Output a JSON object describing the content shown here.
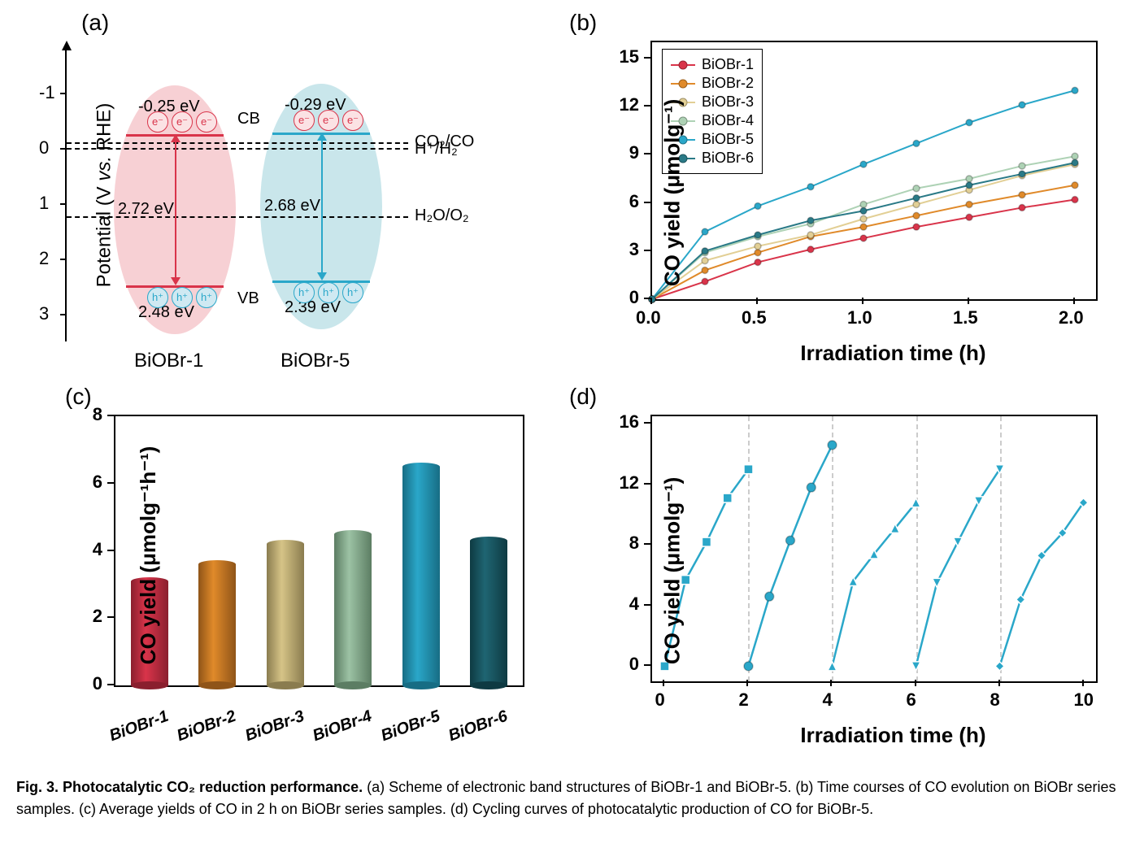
{
  "caption": {
    "fig_label": "Fig. 3.",
    "title_bold": "Photocatalytic CO₂ reduction performance.",
    "rest": " (a) Scheme of electronic band structures of BiOBr-1 and BiOBr-5. (b) Time courses of CO evolution on BiOBr series samples. (c) Average yields of CO in 2 h on BiOBr series samples. (d) Cycling curves of photocatalytic production of CO for BiOBr-5."
  },
  "panel_labels": {
    "a": "(a)",
    "b": "(b)",
    "c": "(c)",
    "d": "(d)"
  },
  "panel_a": {
    "ylabel": "Potential (V vs. RHE)",
    "italic_vs": true,
    "yticks": [
      -1,
      0,
      1,
      2,
      3
    ],
    "y_range": [
      -1.8,
      3.5
    ],
    "reference_lines": [
      {
        "label": "CO₂/CO",
        "y": -0.11
      },
      {
        "label": "H⁺/H₂",
        "y": 0.0
      },
      {
        "label": "H₂O/O₂",
        "y": 1.23
      }
    ],
    "annot": {
      "CB": "CB",
      "VB": "VB"
    },
    "materials": [
      {
        "name": "BiOBr-1",
        "ellipse_color": "#f7d0d4",
        "band_color": "#d9344a",
        "cb": -0.25,
        "vb": 2.48,
        "gap": 2.72,
        "cb_txt": "-0.25 eV",
        "vb_txt": "2.48 eV",
        "gap_txt": "2.72 eV",
        "electron_bg": "#fbe2e4",
        "electron_border": "#d9344a",
        "electron_text_color": "#d9344a",
        "hole_bg": "#cfe9f2",
        "hole_border": "#2aa7c9",
        "hole_text_color": "#2aa7c9"
      },
      {
        "name": "BiOBr-5",
        "ellipse_color": "#c9e6eb",
        "band_color": "#2aa7c9",
        "cb": -0.29,
        "vb": 2.39,
        "gap": 2.68,
        "cb_txt": "-0.29 eV",
        "vb_txt": "2.39 eV",
        "gap_txt": "2.68 eV",
        "electron_bg": "#fbe2e4",
        "electron_border": "#d9344a",
        "electron_text_color": "#d9344a",
        "hole_bg": "#cfe9f2",
        "hole_border": "#2aa7c9",
        "hole_text_color": "#2aa7c9"
      }
    ]
  },
  "panel_b": {
    "type": "line",
    "xlabel": "Irradiation time (h)",
    "ylabel": "CO yield  (μmolg⁻¹)",
    "xlim": [
      0,
      2.1
    ],
    "ylim": [
      0,
      16
    ],
    "xticks": [
      0.0,
      0.5,
      1.0,
      1.5,
      2.0
    ],
    "yticks": [
      0,
      3,
      6,
      9,
      12,
      15
    ],
    "x": [
      0,
      0.25,
      0.5,
      0.75,
      1.0,
      1.25,
      1.5,
      1.75,
      2.0
    ],
    "series": [
      {
        "name": "BiOBr-1",
        "color": "#d9344a",
        "y": [
          0,
          1.1,
          2.3,
          3.1,
          3.8,
          4.5,
          5.1,
          5.7,
          6.2
        ]
      },
      {
        "name": "BiOBr-2",
        "color": "#e08a2a",
        "y": [
          0,
          1.8,
          2.9,
          3.9,
          4.5,
          5.2,
          5.9,
          6.5,
          7.1
        ]
      },
      {
        "name": "BiOBr-3",
        "color": "#e2cf95",
        "y": [
          0,
          2.4,
          3.3,
          4.0,
          5.0,
          5.9,
          6.8,
          7.7,
          8.4
        ]
      },
      {
        "name": "BiOBr-4",
        "color": "#aed2b5",
        "y": [
          0,
          2.9,
          3.9,
          4.7,
          5.9,
          6.9,
          7.5,
          8.3,
          8.9
        ]
      },
      {
        "name": "BiOBr-5",
        "color": "#2aa7c9",
        "y": [
          0,
          4.2,
          5.8,
          7.0,
          8.4,
          9.7,
          11.0,
          12.1,
          13.0
        ]
      },
      {
        "name": "BiOBr-6",
        "color": "#2a7a87",
        "y": [
          0,
          3.0,
          4.0,
          4.9,
          5.5,
          6.3,
          7.1,
          7.8,
          8.5
        ]
      }
    ],
    "legend_border": "#000",
    "line_width": 2,
    "marker_size": 8
  },
  "panel_c": {
    "type": "bar",
    "ylabel": "CO yield (μmolg⁻¹h⁻¹)",
    "ylim": [
      0,
      8
    ],
    "yticks": [
      0,
      2,
      4,
      6,
      8
    ],
    "bar_width": 0.55,
    "categories": [
      "BiOBr-1",
      "BiOBr-2",
      "BiOBr-3",
      "BiOBr-4",
      "BiOBr-5",
      "BiOBr-6"
    ],
    "values": [
      3.1,
      3.6,
      4.2,
      4.5,
      6.5,
      4.3
    ],
    "colors_light": [
      "#d9344a",
      "#e08a2a",
      "#d6c487",
      "#9cc2a4",
      "#2aa7c9",
      "#1f6572"
    ],
    "colors_dark": [
      "#8a1f2e",
      "#8f5418",
      "#8a7c4f",
      "#5c7d63",
      "#176d84",
      "#0e3a42"
    ]
  },
  "panel_d": {
    "type": "line",
    "xlabel": "Irradiation time (h)",
    "ylabel": "CO yield  (μmolg⁻¹)",
    "xlim": [
      -0.3,
      10.3
    ],
    "ylim": [
      -1,
      16.5
    ],
    "xticks": [
      0,
      2,
      4,
      6,
      8,
      10
    ],
    "yticks": [
      0,
      4,
      8,
      12,
      16
    ],
    "color": "#2aa7c9",
    "dash_color": "#cccccc",
    "line_width": 2.5,
    "marker_size": 11,
    "cycles": [
      {
        "marker": "square",
        "x": [
          0,
          0.5,
          1.0,
          1.5,
          2.0
        ],
        "y": [
          0,
          5.7,
          8.2,
          11.1,
          13.0
        ]
      },
      {
        "marker": "circle",
        "x": [
          2,
          2.5,
          3.0,
          3.5,
          4.0
        ],
        "y": [
          0,
          4.6,
          8.3,
          11.8,
          14.6
        ]
      },
      {
        "marker": "triangle",
        "x": [
          4,
          4.5,
          5.0,
          5.5,
          6.0
        ],
        "y": [
          0,
          5.6,
          7.4,
          9.1,
          10.8
        ]
      },
      {
        "marker": "invtriangle",
        "x": [
          6,
          6.5,
          7.0,
          7.5,
          8.0
        ],
        "y": [
          0,
          5.5,
          8.2,
          10.9,
          13.0
        ]
      },
      {
        "marker": "diamond",
        "x": [
          8,
          8.5,
          9.0,
          9.5,
          10.0
        ],
        "y": [
          0,
          4.4,
          7.3,
          8.8,
          10.8
        ]
      }
    ]
  },
  "fonts": {
    "label_fontsize": 26,
    "tick_fontsize": 22,
    "title_fontsize": 18
  }
}
